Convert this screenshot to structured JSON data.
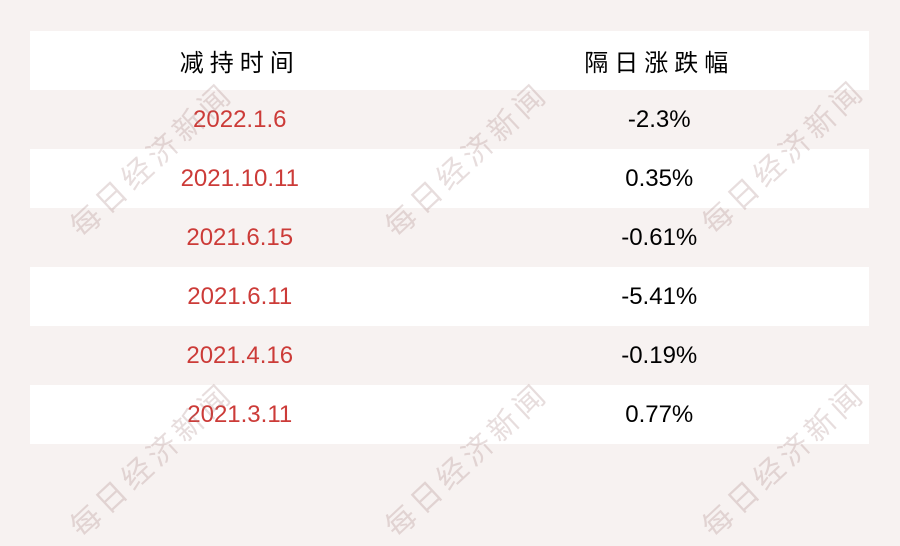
{
  "watermark": {
    "text": "每日经济新闻"
  },
  "table": {
    "columns": [
      {
        "label": "减持时间"
      },
      {
        "label": "隔日涨跌幅"
      }
    ],
    "rows": [
      {
        "date": "2022.1.6",
        "change": "-2.3%"
      },
      {
        "date": "2021.10.11",
        "change": "0.35%"
      },
      {
        "date": "2021.6.15",
        "change": "-0.61%"
      },
      {
        "date": "2021.6.11",
        "change": "-5.41%"
      },
      {
        "date": "2021.4.16",
        "change": "-0.19%"
      },
      {
        "date": "2021.3.11",
        "change": "0.77%"
      }
    ]
  },
  "colors": {
    "page_bg": "#f7f2f1",
    "row_white": "#ffffff",
    "date_red": "#cc3b38",
    "text_black": "#000000",
    "watermark": "rgba(158,120,120,0.25)"
  },
  "chart_data": {
    "type": "table",
    "title": "",
    "columns": [
      "减持时间",
      "隔日涨跌幅"
    ],
    "rows": [
      [
        "2022.1.6",
        "-2.3%"
      ],
      [
        "2021.10.11",
        "0.35%"
      ],
      [
        "2021.6.15",
        "-0.61%"
      ],
      [
        "2021.6.11",
        "-5.41%"
      ],
      [
        "2021.4.16",
        "-0.19%"
      ],
      [
        "2021.3.11",
        "0.77%"
      ]
    ],
    "change_values_percent": [
      -2.3,
      0.35,
      -0.61,
      -5.41,
      -0.19,
      0.77
    ],
    "layout": {
      "alternating_row_background": true,
      "watermark_text": "每日经济新闻",
      "watermark_grid": {
        "cols": 3,
        "rows": 2,
        "rotation_deg": -43
      }
    }
  }
}
